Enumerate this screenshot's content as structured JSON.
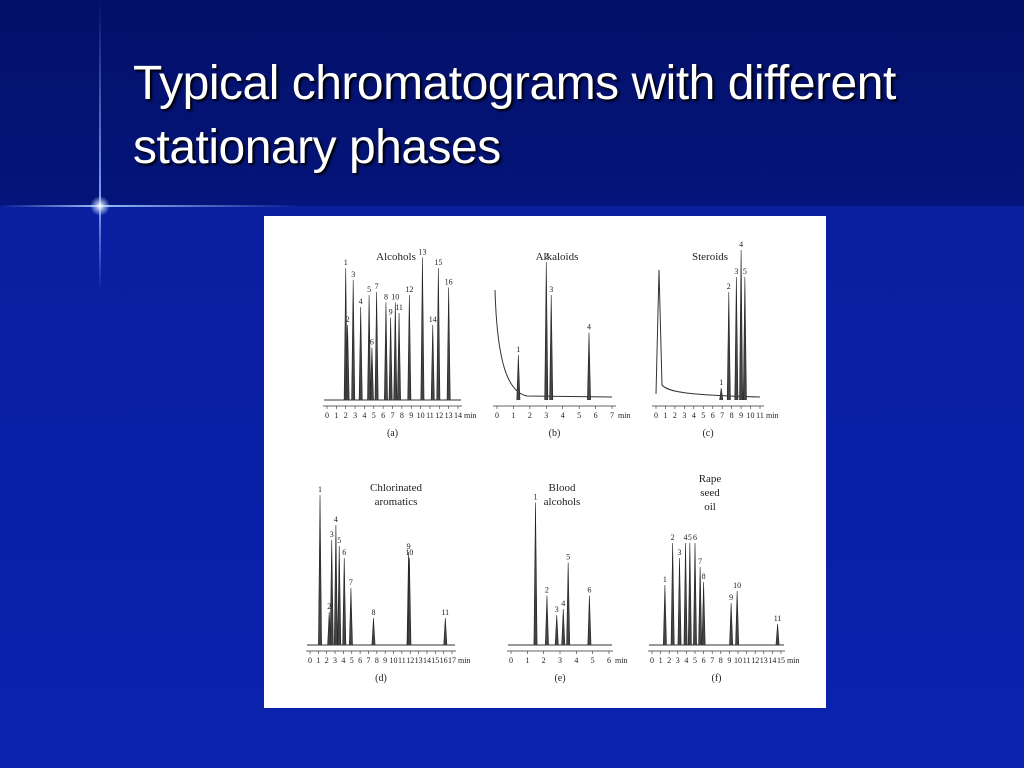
{
  "title": "Typical chromatograms with different stationary phases",
  "figure": {
    "axis_unit": "min",
    "panels": [
      {
        "title": [
          "Alcohols"
        ],
        "caption": "(a)",
        "xlim": [
          0,
          14
        ],
        "xticks": [
          0,
          1,
          2,
          3,
          4,
          5,
          6,
          7,
          8,
          9,
          10,
          11,
          12,
          13,
          14
        ],
        "peaks": [
          {
            "label": "1",
            "time": 2.0,
            "height": 88
          },
          {
            "label": "2",
            "time": 2.2,
            "height": 50
          },
          {
            "label": "3",
            "time": 2.8,
            "height": 80
          },
          {
            "label": "4",
            "time": 3.6,
            "height": 62
          },
          {
            "label": "5",
            "time": 4.5,
            "height": 70
          },
          {
            "label": "6",
            "time": 4.8,
            "height": 35
          },
          {
            "label": "7",
            "time": 5.3,
            "height": 72
          },
          {
            "label": "8",
            "time": 6.3,
            "height": 65
          },
          {
            "label": "9",
            "time": 6.8,
            "height": 55
          },
          {
            "label": "10",
            "time": 7.3,
            "height": 65
          },
          {
            "label": "11",
            "time": 7.7,
            "height": 58
          },
          {
            "label": "12",
            "time": 8.8,
            "height": 70
          },
          {
            "label": "13",
            "time": 10.2,
            "height": 95
          },
          {
            "label": "14",
            "time": 11.3,
            "height": 50
          },
          {
            "label": "15",
            "time": 11.9,
            "height": 88
          },
          {
            "label": "16",
            "time": 13.0,
            "height": 75
          }
        ]
      },
      {
        "title": [
          "Alkaloids"
        ],
        "caption": "(b)",
        "xlim": [
          0,
          7
        ],
        "xticks": [
          0,
          1,
          2,
          3,
          4,
          5,
          6,
          7
        ],
        "peaks": [
          {
            "label": "1",
            "time": 1.3,
            "height": 30
          },
          {
            "label": "2",
            "time": 3.0,
            "height": 92
          },
          {
            "label": "3",
            "time": 3.3,
            "height": 70
          },
          {
            "label": "4",
            "time": 5.6,
            "height": 45
          }
        ]
      },
      {
        "title": [
          "Steroids"
        ],
        "caption": "(c)",
        "xlim": [
          0,
          11
        ],
        "xticks": [
          0,
          1,
          2,
          3,
          4,
          5,
          6,
          7,
          8,
          9,
          10,
          11
        ],
        "peaks": [
          {
            "label": "1",
            "time": 6.9,
            "height": 8
          },
          {
            "label": "2",
            "time": 7.7,
            "height": 72
          },
          {
            "label": "3",
            "time": 8.5,
            "height": 82
          },
          {
            "label": "4",
            "time": 9.0,
            "height": 100
          },
          {
            "label": "5",
            "time": 9.4,
            "height": 82
          }
        ]
      },
      {
        "title": [
          "Chlorinated",
          "aromatics"
        ],
        "caption": "(d)",
        "xlim": [
          0,
          17
        ],
        "xticks": [
          0,
          1,
          2,
          3,
          4,
          5,
          6,
          7,
          8,
          9,
          10,
          11,
          12,
          13,
          14,
          15,
          16,
          17
        ],
        "peaks": [
          {
            "label": "1",
            "time": 1.2,
            "height": 100
          },
          {
            "label": "2",
            "time": 2.3,
            "height": 22
          },
          {
            "label": "3",
            "time": 2.6,
            "height": 70
          },
          {
            "label": "4",
            "time": 3.1,
            "height": 80
          },
          {
            "label": "5",
            "time": 3.5,
            "height": 66
          },
          {
            "label": "6",
            "time": 4.1,
            "height": 58
          },
          {
            "label": "7",
            "time": 4.9,
            "height": 38
          },
          {
            "label": "8",
            "time": 7.6,
            "height": 18
          },
          {
            "label": "9",
            "time": 11.8,
            "height": 62
          },
          {
            "label": "10",
            "time": 11.9,
            "height": 58
          },
          {
            "label": "11",
            "time": 16.2,
            "height": 18
          }
        ]
      },
      {
        "title": [
          "Blood",
          "alcohols"
        ],
        "caption": "(e)",
        "xlim": [
          0,
          6
        ],
        "xticks": [
          0,
          1,
          2,
          3,
          4,
          5,
          6
        ],
        "peaks": [
          {
            "label": "1",
            "time": 1.5,
            "height": 95
          },
          {
            "label": "2",
            "time": 2.2,
            "height": 33
          },
          {
            "label": "3",
            "time": 2.8,
            "height": 20
          },
          {
            "label": "4",
            "time": 3.2,
            "height": 24
          },
          {
            "label": "5",
            "time": 3.5,
            "height": 55
          },
          {
            "label": "6",
            "time": 4.8,
            "height": 33
          }
        ]
      },
      {
        "title": [
          "Rape",
          "seed",
          "oil"
        ],
        "caption": "(f)",
        "xlim": [
          0,
          15
        ],
        "xticks": [
          0,
          1,
          2,
          3,
          4,
          5,
          6,
          7,
          8,
          9,
          10,
          11,
          12,
          13,
          14,
          15
        ],
        "peaks": [
          {
            "label": "1",
            "time": 1.5,
            "height": 40
          },
          {
            "label": "2",
            "time": 2.4,
            "height": 68
          },
          {
            "label": "3",
            "time": 3.2,
            "height": 58
          },
          {
            "label": "4",
            "time": 3.9,
            "height": 68
          },
          {
            "label": "5",
            "time": 4.4,
            "height": 68
          },
          {
            "label": "6",
            "time": 5.0,
            "height": 68
          },
          {
            "label": "7",
            "time": 5.6,
            "height": 52
          },
          {
            "label": "8",
            "time": 6.0,
            "height": 42
          },
          {
            "label": "9",
            "time": 9.2,
            "height": 28
          },
          {
            "label": "10",
            "time": 9.9,
            "height": 36
          },
          {
            "label": "11",
            "time": 14.6,
            "height": 14
          }
        ]
      }
    ]
  }
}
